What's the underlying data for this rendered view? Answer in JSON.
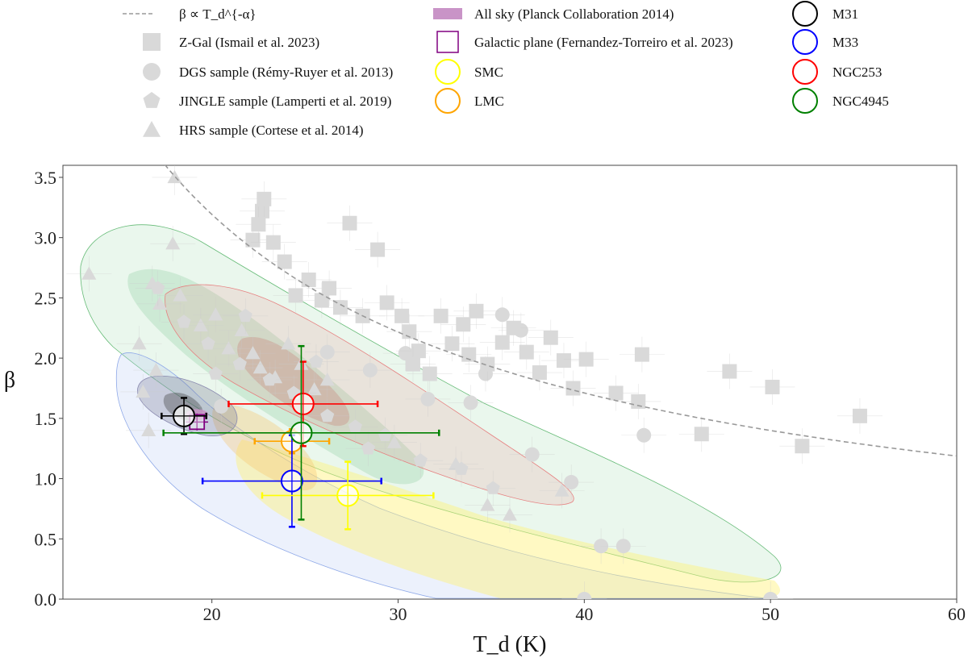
{
  "chart_data": {
    "type": "scatter",
    "title": "",
    "xlabel": "T_d (K)",
    "ylabel": "β",
    "xlim": [
      12,
      60
    ],
    "ylim": [
      0.0,
      3.6
    ],
    "x_ticks": [
      20,
      30,
      40,
      50,
      60
    ],
    "y_ticks": [
      0.0,
      0.5,
      1.0,
      1.5,
      2.0,
      2.5,
      3.0,
      3.5
    ],
    "x_tick_labels": [
      "20",
      "30",
      "40",
      "50",
      "60"
    ],
    "y_tick_labels": [
      "0.0",
      "0.5",
      "1.0",
      "1.5",
      "2.0",
      "2.5",
      "3.0",
      "3.5"
    ],
    "legend": {
      "placement": "above plot",
      "entries": [
        {
          "key": "fit",
          "label": "β ∝ T_d^{-α}",
          "marker": "dashed-line",
          "color": "#999999"
        },
        {
          "key": "zgal",
          "label": "Z-Gal (Ismail et al. 2023)",
          "marker": "square",
          "color": "#d9d9d9"
        },
        {
          "key": "dgs",
          "label": "DGS sample (Rémy-Ruyer et al. 2013)",
          "marker": "circle",
          "color": "#d9d9d9"
        },
        {
          "key": "jingle",
          "label": "JINGLE sample (Lamperti et al. 2019)",
          "marker": "pentagon",
          "color": "#d9d9d9"
        },
        {
          "key": "hrs",
          "label": "HRS sample (Cortese et al. 2014)",
          "marker": "triangle",
          "color": "#d9d9d9"
        },
        {
          "key": "allsky",
          "label": "All sky (Planck Collaboration 2014)",
          "marker": "filled-band",
          "color": "#c994c7"
        },
        {
          "key": "galplane",
          "label": "Galactic plane (Fernandez-Torreiro et al. 2023)",
          "marker": "open-square",
          "color": "#800080"
        },
        {
          "key": "smc",
          "label": "SMC",
          "marker": "open-circle",
          "color": "#ffff00"
        },
        {
          "key": "lmc",
          "label": "LMC",
          "marker": "open-circle",
          "color": "#ffa500"
        },
        {
          "key": "m31",
          "label": "M31",
          "marker": "open-circle",
          "color": "#000000"
        },
        {
          "key": "m33",
          "label": "M33",
          "marker": "open-circle",
          "color": "#0000ff"
        },
        {
          "key": "ngc253",
          "label": "NGC253",
          "marker": "open-circle",
          "color": "#ff0000"
        },
        {
          "key": "ngc4945",
          "label": "NGC4945",
          "marker": "open-circle",
          "color": "#008000"
        }
      ]
    },
    "fit_curve": {
      "name": "β ∝ T_d^{-α}",
      "A": 3.6,
      "T0": 17.5,
      "alpha": 0.9
    },
    "galaxies": [
      {
        "name": "M31",
        "color": "#000000",
        "x": 18.5,
        "y": 1.52,
        "xerr": 1.2,
        "yerr": 0.15,
        "zorder": 3
      },
      {
        "name": "M33",
        "color": "#0000ff",
        "x": 24.3,
        "y": 0.98,
        "xerr": 4.8,
        "yerr": 0.38,
        "zorder": 2
      },
      {
        "name": "SMC",
        "color": "#ffff00",
        "x": 27.3,
        "y": 0.86,
        "xerr": 4.6,
        "yerr": 0.28,
        "zorder": 2
      },
      {
        "name": "LMC",
        "color": "#ffa500",
        "x": 24.3,
        "y": 1.31,
        "xerr": 2.0,
        "yerr": 0.1,
        "zorder": 1
      },
      {
        "name": "NGC253",
        "color": "#ff0000",
        "x": 24.9,
        "y": 1.62,
        "xerr": 4.0,
        "yerr": 0.35,
        "zorder": 2
      },
      {
        "name": "NGC4945",
        "color": "#008000",
        "x": 24.8,
        "y": 1.38,
        "xerr": 7.4,
        "yerr": 0.72,
        "zorder": 3
      }
    ],
    "galactic_plane": {
      "x": 19.2,
      "y": 1.47,
      "xerr": 0.6,
      "yerr": 0.07
    },
    "all_sky": {
      "x": 19.2,
      "y": 1.53
    },
    "zgal": [
      [
        22.2,
        2.98
      ],
      [
        22.7,
        3.22
      ],
      [
        22.5,
        3.11
      ],
      [
        22.8,
        3.32
      ],
      [
        23.3,
        2.96
      ],
      [
        23.9,
        2.8
      ],
      [
        24.5,
        2.52
      ],
      [
        25.2,
        2.65
      ],
      [
        25.9,
        2.48
      ],
      [
        26.3,
        2.58
      ],
      [
        26.9,
        2.42
      ],
      [
        27.4,
        3.12
      ],
      [
        28.1,
        2.35
      ],
      [
        28.9,
        2.9
      ],
      [
        29.4,
        2.46
      ],
      [
        30.2,
        2.35
      ],
      [
        30.6,
        2.22
      ],
      [
        31.1,
        2.06
      ],
      [
        31.7,
        1.87
      ],
      [
        32.3,
        2.35
      ],
      [
        32.9,
        2.12
      ],
      [
        33.5,
        2.28
      ],
      [
        34.2,
        2.39
      ],
      [
        34.8,
        1.95
      ],
      [
        35.6,
        2.13
      ],
      [
        36.2,
        2.25
      ],
      [
        36.9,
        2.05
      ],
      [
        37.6,
        1.88
      ],
      [
        38.2,
        2.17
      ],
      [
        38.9,
        1.98
      ],
      [
        39.4,
        1.75
      ],
      [
        40.1,
        1.99
      ],
      [
        41.7,
        1.71
      ],
      [
        43.1,
        2.03
      ],
      [
        42.9,
        1.64
      ],
      [
        46.3,
        1.37
      ],
      [
        47.8,
        1.89
      ],
      [
        50.1,
        1.76
      ],
      [
        51.7,
        1.27
      ],
      [
        54.8,
        1.52
      ],
      [
        30.8,
        1.95
      ],
      [
        33.8,
        2.03
      ]
    ],
    "dgs": [
      [
        20.5,
        1.6
      ],
      [
        26.2,
        2.05
      ],
      [
        30.4,
        2.04
      ],
      [
        31.6,
        1.66
      ],
      [
        35.6,
        2.36
      ],
      [
        36.6,
        2.23
      ],
      [
        37.2,
        1.2
      ],
      [
        39.3,
        0.97
      ],
      [
        40.9,
        0.44
      ],
      [
        42.1,
        0.44
      ],
      [
        43.2,
        1.36
      ],
      [
        34.7,
        1.87
      ],
      [
        28.5,
        1.9
      ],
      [
        40.0,
        0.0
      ],
      [
        50.0,
        0.0
      ],
      [
        33.9,
        1.63
      ]
    ],
    "jingle": [
      [
        17.1,
        2.58
      ],
      [
        18.5,
        2.3
      ],
      [
        19.8,
        2.12
      ],
      [
        21.5,
        1.95
      ],
      [
        23.1,
        1.82
      ],
      [
        24.4,
        1.71
      ],
      [
        26.2,
        1.52
      ],
      [
        27.7,
        1.43
      ],
      [
        29.3,
        1.36
      ],
      [
        31.2,
        1.15
      ],
      [
        33.4,
        1.08
      ],
      [
        35.1,
        0.92
      ],
      [
        21.8,
        2.35
      ],
      [
        20.2,
        1.87
      ],
      [
        25.6,
        1.97
      ],
      [
        28.4,
        1.25
      ]
    ],
    "hrs": [
      [
        13.4,
        2.7
      ],
      [
        16.1,
        2.12
      ],
      [
        16.8,
        2.62
      ],
      [
        17.2,
        2.45
      ],
      [
        17.9,
        2.95
      ],
      [
        18.3,
        2.52
      ],
      [
        19.4,
        2.27
      ],
      [
        20.2,
        2.36
      ],
      [
        20.9,
        2.08
      ],
      [
        21.6,
        2.23
      ],
      [
        22.2,
        2.04
      ],
      [
        22.6,
        1.92
      ],
      [
        23.4,
        1.84
      ],
      [
        24.1,
        2.12
      ],
      [
        24.8,
        1.95
      ],
      [
        25.5,
        1.74
      ],
      [
        26.2,
        1.82
      ],
      [
        18.0,
        3.5
      ],
      [
        16.6,
        1.4
      ],
      [
        17.0,
        1.9
      ],
      [
        36.0,
        0.7
      ],
      [
        38.8,
        0.9
      ],
      [
        34.8,
        0.78
      ],
      [
        33.1,
        1.12
      ],
      [
        29.8,
        1.3
      ],
      [
        16.3,
        1.72
      ]
    ]
  }
}
